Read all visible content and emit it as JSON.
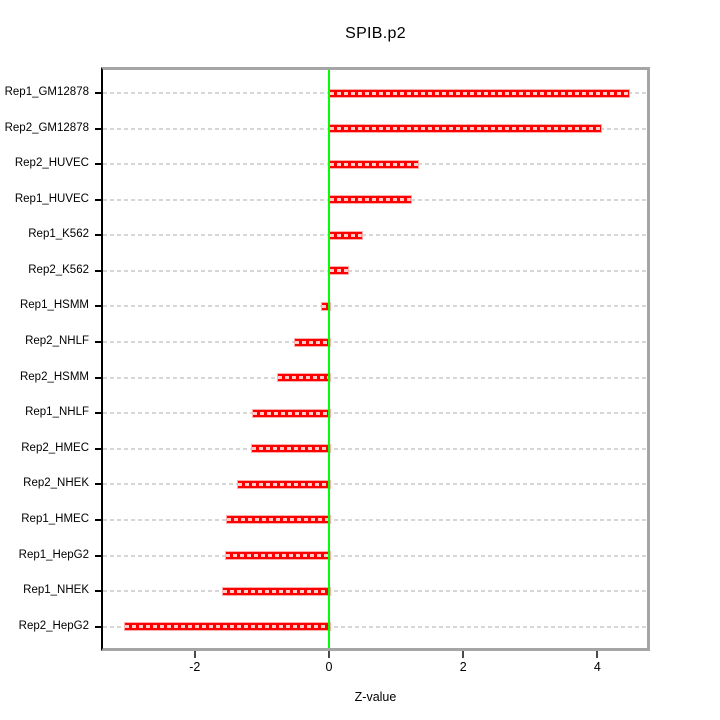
{
  "chart_data": {
    "type": "bar",
    "orientation": "horizontal",
    "title": "SPIB.p2",
    "xlabel": "Z-value",
    "categories": [
      "Rep1_GM12878",
      "Rep2_GM12878",
      "Rep2_HUVEC",
      "Rep1_HUVEC",
      "Rep1_K562",
      "Rep2_K562",
      "Rep1_HSMM",
      "Rep2_NHLF",
      "Rep2_HSMM",
      "Rep1_NHLF",
      "Rep2_HMEC",
      "Rep2_NHEK",
      "Rep1_HMEC",
      "Rep1_HepG2",
      "Rep1_NHEK",
      "Rep2_HepG2"
    ],
    "values": [
      4.45,
      4.04,
      1.31,
      1.2,
      0.47,
      0.27,
      -0.12,
      -0.52,
      -0.78,
      -1.15,
      -1.16,
      -1.37,
      -1.53,
      -1.55,
      -1.59,
      -3.06
    ],
    "x_ticks": [
      "-2",
      "0",
      "2",
      "4"
    ],
    "x_tick_values": [
      -2,
      0,
      2,
      4
    ],
    "xlim": [
      -3.37,
      4.76
    ],
    "grid": "horizontal-dashed",
    "legend": "none",
    "zero_line_value": 0,
    "colors": {
      "bar": "#ff0000",
      "bar_edge": "#ffabab",
      "zero_line": "#00ff00",
      "grid": "#d6d6d6",
      "box": "#a5a5a5",
      "axis": "#000000",
      "text": "#000000",
      "background": "#ffffff"
    }
  }
}
